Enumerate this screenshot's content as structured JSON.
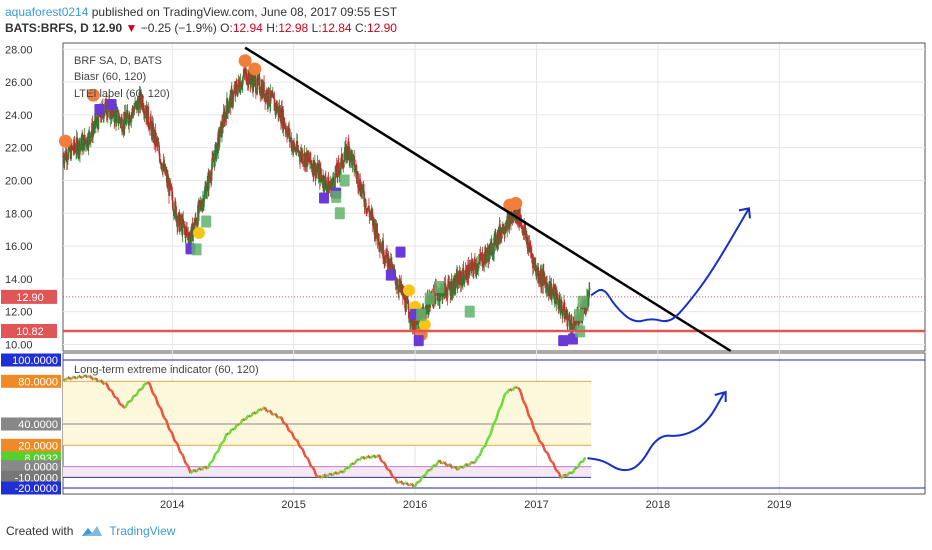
{
  "header": {
    "author": "aquaforest0214",
    "published": "published on TradingView.com, June 08, 2017 09:55 EST",
    "symbol": "BATS:BRFS, D",
    "last": "12.90",
    "change": "−0.25 (−1.9%)",
    "open_label": "O:",
    "open": "12.94",
    "high_label": "H:",
    "high": "12.98",
    "low_label": "L:",
    "low": "12.84",
    "close_label": "C:",
    "close": "12.90"
  },
  "legend": {
    "line1": "BRF SA, D, BATS",
    "line2": "Biasr (60, 120)",
    "line3": "LTEI label (60, 120)",
    "indicator": "Long-term extreme indicator (60, 120)"
  },
  "colors": {
    "price_up": "#2e7d32",
    "price_down": "#c62828",
    "trendline": "#000000",
    "projection": "#1530c8",
    "support": "#e05555",
    "osc_up": "#66dd33",
    "osc_down": "#e8523a",
    "label_purple": "#6a3ad9",
    "label_green": "#5fb36a",
    "label_orange": "#f07f3c",
    "label_yellow": "#f5c518"
  },
  "footer": {
    "created": "Created with",
    "brand": "TradingView"
  },
  "chart_data": [
    {
      "type": "line",
      "title": "BRF SA, D, BATS",
      "y_ticks": [
        "28.00",
        "26.00",
        "24.00",
        "22.00",
        "20.00",
        "18.00",
        "16.00",
        "14.00",
        "12.00",
        "10.00"
      ],
      "ylim": [
        9.6,
        28.2
      ],
      "x_ticks": [
        "2014",
        "2015",
        "2016",
        "2017",
        "2018",
        "2019"
      ],
      "x_range": [
        2013.1,
        2020.2
      ],
      "price_badges": [
        {
          "label": "12.90",
          "value": 12.9
        },
        {
          "label": "10.82",
          "value": 10.82
        }
      ],
      "series": [
        {
          "values_x": [
            2013.1,
            2013.3,
            2013.45,
            2013.6,
            2013.75,
            2013.9,
            2014.05,
            2014.15,
            2014.3,
            2014.45,
            2014.6,
            2014.75,
            2014.9,
            2015.0,
            2015.15,
            2015.3,
            2015.45,
            2015.6,
            2015.75,
            2015.9,
            2016.0,
            2016.15,
            2016.3,
            2016.45,
            2016.6,
            2016.75,
            2016.85,
            2017.0,
            2017.15,
            2017.3,
            2017.44
          ],
          "values": [
            21.5,
            22.5,
            24.5,
            23.5,
            25.0,
            21.5,
            17.5,
            16.5,
            20.0,
            24.5,
            26.5,
            25.5,
            24.0,
            22.0,
            21.0,
            19.5,
            22.0,
            18.5,
            15.5,
            13.0,
            11.0,
            13.0,
            13.5,
            14.5,
            15.5,
            17.5,
            18.0,
            14.5,
            13.0,
            11.0,
            12.9
          ]
        }
      ],
      "trendline": {
        "x": [
          2014.6,
          2018.6
        ],
        "y": [
          28.1,
          9.6
        ]
      },
      "support_level": 10.82,
      "projection": {
        "x": [
          2017.45,
          2017.55,
          2017.65,
          2017.8,
          2017.95,
          2018.1,
          2018.25,
          2018.45,
          2018.75
        ],
        "y": [
          13.0,
          13.5,
          12.3,
          11.3,
          11.6,
          11.3,
          12.5,
          14.5,
          18.3
        ]
      }
    },
    {
      "type": "line",
      "title": "Long-term extreme indicator (60, 120)",
      "y_ticks": [
        "100.0000",
        "80.0000",
        "40.0000",
        "20.0000",
        "8.0932",
        "0.0000",
        "-10.0000",
        "-20.0000"
      ],
      "ylim": [
        -20,
        100
      ],
      "levels": [
        100,
        80,
        40,
        20,
        0,
        -10,
        -20
      ],
      "current_value": 8.0932,
      "series": [
        {
          "values_x": [
            2013.1,
            2013.3,
            2013.45,
            2013.6,
            2013.8,
            2014.0,
            2014.15,
            2014.3,
            2014.45,
            2014.6,
            2014.75,
            2014.9,
            2015.05,
            2015.2,
            2015.4,
            2015.55,
            2015.7,
            2015.85,
            2016.0,
            2016.1,
            2016.2,
            2016.35,
            2016.5,
            2016.6,
            2016.75,
            2016.85,
            2017.0,
            2017.1,
            2017.2,
            2017.3,
            2017.4
          ],
          "values": [
            82,
            85,
            78,
            55,
            80,
            30,
            -5,
            0,
            30,
            45,
            55,
            45,
            20,
            -10,
            -5,
            8,
            10,
            -14,
            -18,
            -5,
            5,
            -2,
            5,
            25,
            70,
            75,
            30,
            10,
            -10,
            -5,
            8.0932
          ]
        }
      ],
      "projection": {
        "x": [
          2017.42,
          2017.55,
          2017.7,
          2017.85,
          2018.0,
          2018.2,
          2018.4,
          2018.55
        ],
        "y": [
          8,
          6,
          -5,
          0,
          30,
          28,
          40,
          70
        ]
      }
    }
  ]
}
